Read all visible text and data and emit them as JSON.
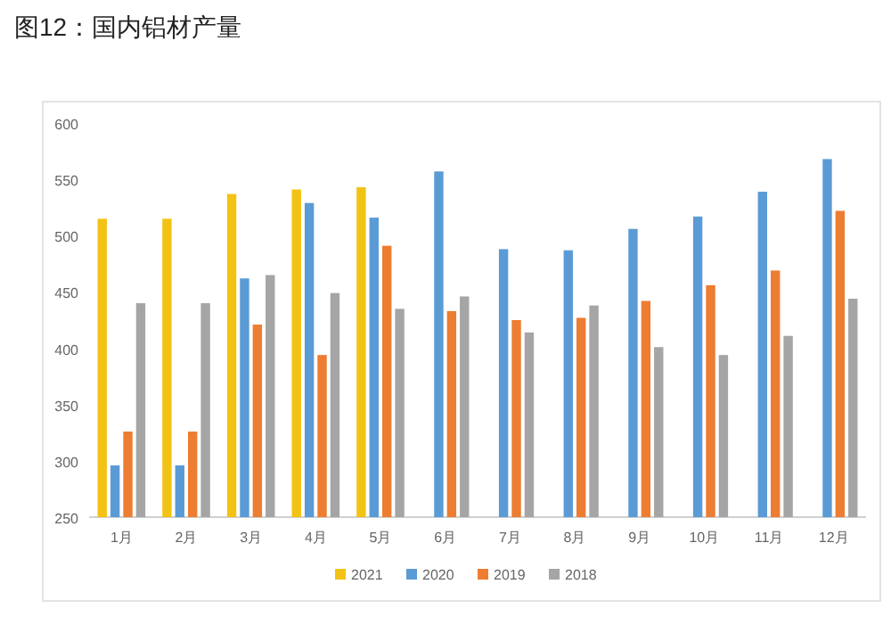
{
  "chart_data": {
    "type": "bar",
    "title": "图12：国内铝材产量",
    "categories": [
      "1月",
      "2月",
      "3月",
      "4月",
      "5月",
      "6月",
      "7月",
      "8月",
      "9月",
      "10月",
      "11月",
      "12月"
    ],
    "series": [
      {
        "name": "2021",
        "color": "#f2c314",
        "values": [
          515,
          515,
          537,
          541,
          543,
          null,
          null,
          null,
          null,
          null,
          null,
          null
        ]
      },
      {
        "name": "2020",
        "color": "#5b9bd5",
        "values": [
          296,
          296,
          462,
          529,
          516,
          557,
          488,
          487,
          506,
          517,
          539,
          568
        ]
      },
      {
        "name": "2019",
        "color": "#ed7d31",
        "values": [
          326,
          326,
          421,
          394,
          491,
          433,
          425,
          427,
          442,
          456,
          469,
          522
        ]
      },
      {
        "name": "2018",
        "color": "#a5a5a5",
        "values": [
          440,
          440,
          465,
          449,
          435,
          446,
          414,
          438,
          401,
          394,
          411,
          444
        ]
      }
    ],
    "ylim": [
      250,
      600
    ],
    "yticks": [
      250,
      300,
      350,
      400,
      450,
      500,
      550,
      600
    ],
    "legend": "bottom"
  }
}
